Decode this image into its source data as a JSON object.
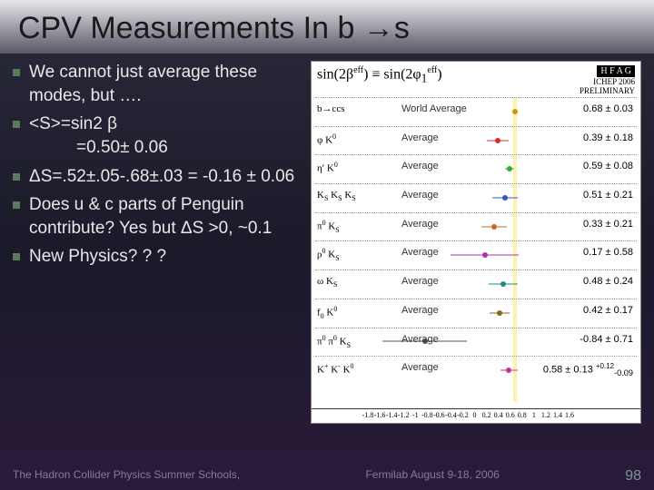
{
  "title_prefix": "CPV Measurements In b ",
  "title_arrow": "→",
  "title_suffix": "s",
  "bullets": [
    {
      "text": "We  cannot just average these modes, but …."
    },
    {
      "text": "<S>=sin2 β",
      "text2": "=0.50± 0.06"
    },
    {
      "text": "ΔS=.52±.05-.68±.03 = -0.16 ± 0.06"
    },
    {
      "text": "Does u & c parts of Penguin contribute? Yes but ΔS >0, ~0.1"
    },
    {
      "text": "New Physics? ? ?"
    }
  ],
  "footer_left": "The Hadron Collider  Physics Summer Schools,",
  "footer_mid": "Fermilab  August 9-18, 2006",
  "page_number": "98",
  "chart": {
    "formula_html": "sin(2β<sup>eff</sup>) ≡ sin(2φ<sub>1</sub><sup>eff</sup>)",
    "hfag": "H F A G",
    "hfag_sub1": "ICHEP 2006",
    "hfag_sub2": "PRELIMINARY",
    "xmin": -1.8,
    "xmax": 1.6,
    "ticks": [
      -1.8,
      -1.6,
      -1.4,
      -1.2,
      -1,
      -0.8,
      -0.6,
      -0.4,
      -0.2,
      0,
      0.2,
      0.4,
      0.6,
      0.8,
      1,
      1.2,
      1.4,
      1.6
    ],
    "band_center": 0.68,
    "band_err": 0.03,
    "rows": [
      {
        "label_html": "b→ccs",
        "avg": "World Average",
        "val_html": "0.68 ± 0.03",
        "x": 0.68,
        "ex": 0.03,
        "color": "#cc9900"
      },
      {
        "label_html": "φ K<sup>0</sup>",
        "avg": "Average",
        "val_html": "0.39 ± 0.18",
        "x": 0.39,
        "ex": 0.18,
        "color": "#cc3333"
      },
      {
        "label_html": "η′ K<sup>0</sup>",
        "avg": "Average",
        "val_html": "0.59 ± 0.08",
        "x": 0.59,
        "ex": 0.08,
        "color": "#33aa33"
      },
      {
        "label_html": "K<sub>S</sub> K<sub>S</sub> K<sub>S</sub>",
        "avg": "Average",
        "val_html": "0.51 ± 0.21",
        "x": 0.51,
        "ex": 0.21,
        "color": "#3355cc"
      },
      {
        "label_html": "π<sup>0</sup> K<sub>S</sub>",
        "avg": "Average",
        "val_html": "0.33 ± 0.21",
        "x": 0.33,
        "ex": 0.21,
        "color": "#cc6622"
      },
      {
        "label_html": "ρ<sup>0</sup> K<sub>S</sub>",
        "avg": "Average",
        "val_html": "0.17 ± 0.58",
        "x": 0.17,
        "ex": 0.58,
        "color": "#aa33aa"
      },
      {
        "label_html": "ω K<sub>S</sub>",
        "avg": "Average",
        "val_html": "0.48 ± 0.24",
        "x": 0.48,
        "ex": 0.24,
        "color": "#228888"
      },
      {
        "label_html": "f<sub>0</sub> K<sup>0</sup>",
        "avg": "Average",
        "val_html": "0.42 ± 0.17",
        "x": 0.42,
        "ex": 0.17,
        "color": "#886622"
      },
      {
        "label_html": "π<sup>0</sup> π<sup>0</sup> K<sub>S</sub>",
        "avg": "Average",
        "val_html": "-0.84 ± 0.71",
        "x": -0.84,
        "ex": 0.71,
        "color": "#555555"
      },
      {
        "label_html": "K<sup>+</sup> K<sup>-</sup> K<sup>0</sup>",
        "avg": "Average",
        "val_html": "0.58 ± 0.13 <sup>+0.12</sup><sub>-0.09</sub>",
        "x": 0.58,
        "ex": 0.15,
        "color": "#cc3388"
      }
    ]
  }
}
